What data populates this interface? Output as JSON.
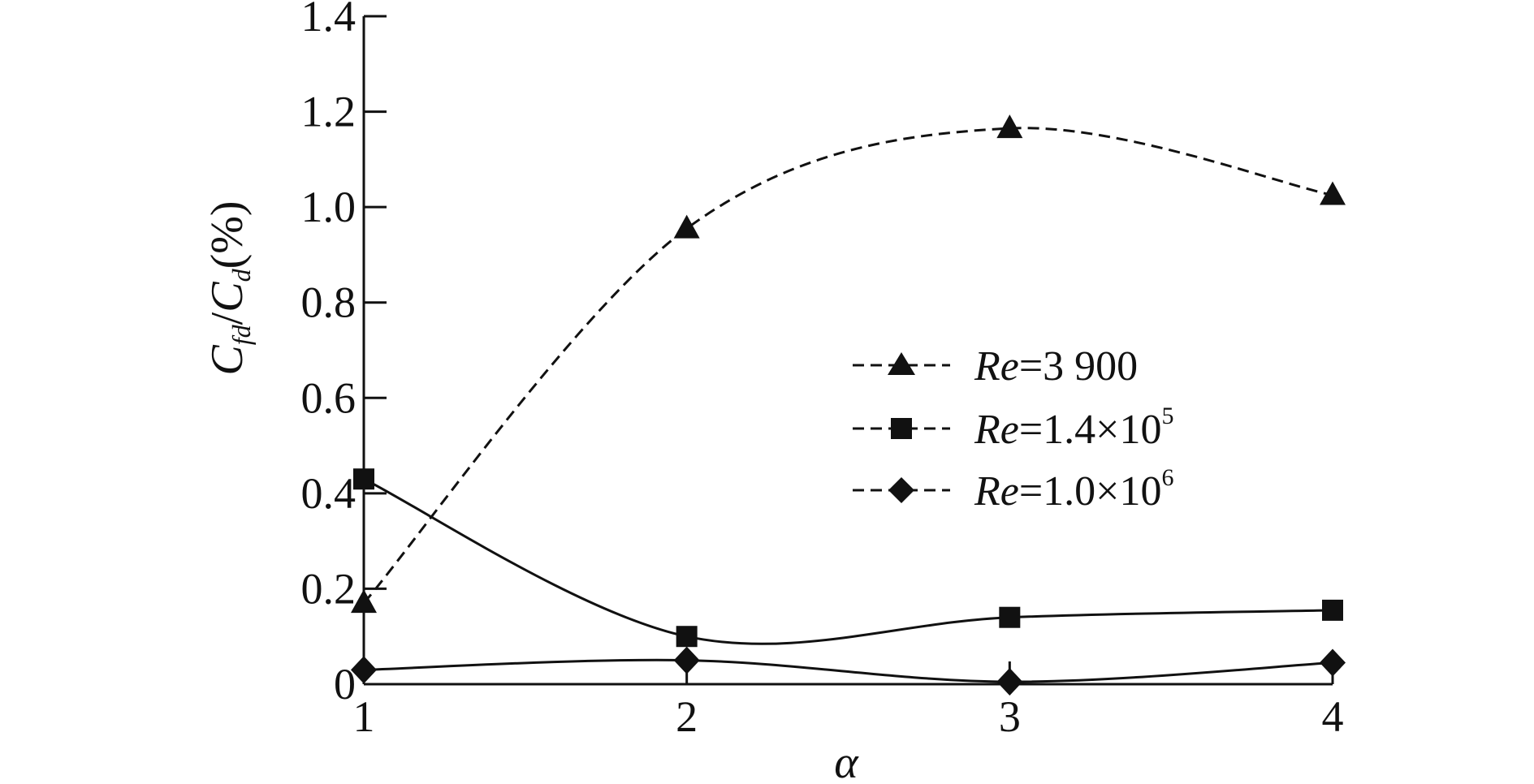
{
  "chart_data": {
    "type": "line",
    "x": [
      1,
      2,
      3,
      4
    ],
    "xlim": [
      1,
      4
    ],
    "ylim": [
      0,
      1.4
    ],
    "x_ticks": [
      "1",
      "2",
      "3",
      "4"
    ],
    "y_ticks": [
      "0",
      "0.2",
      "0.4",
      "0.6",
      "0.8",
      "1.0",
      "1.2",
      "1.4"
    ],
    "xlabel": "α",
    "ylabel": {
      "c1": "C",
      "s1": "fd",
      "slash": "/",
      "c2": "C",
      "s2": "d",
      "unit": "(%)"
    },
    "grid": false,
    "legend_position": "center-right",
    "series": [
      {
        "name": "Re=3 900",
        "legend_label": {
          "re": "Re",
          "rest": "=3 900",
          "exp": ""
        },
        "marker": "triangle",
        "line_style": "dashed",
        "color": "#111111",
        "values": [
          0.17,
          0.955,
          1.165,
          1.025
        ]
      },
      {
        "name": "Re=1.4×10^5",
        "legend_label": {
          "re": "Re",
          "rest": "=1.4×10",
          "exp": "5"
        },
        "marker": "square",
        "line_style": "solid",
        "color": "#111111",
        "values": [
          0.43,
          0.1,
          0.14,
          0.155
        ]
      },
      {
        "name": "Re=1.0×10^6",
        "legend_label": {
          "re": "Re",
          "rest": "=1.0×10",
          "exp": "6"
        },
        "marker": "diamond",
        "line_style": "solid",
        "color": "#111111",
        "values": [
          0.03,
          0.05,
          0.005,
          0.045
        ]
      }
    ]
  }
}
